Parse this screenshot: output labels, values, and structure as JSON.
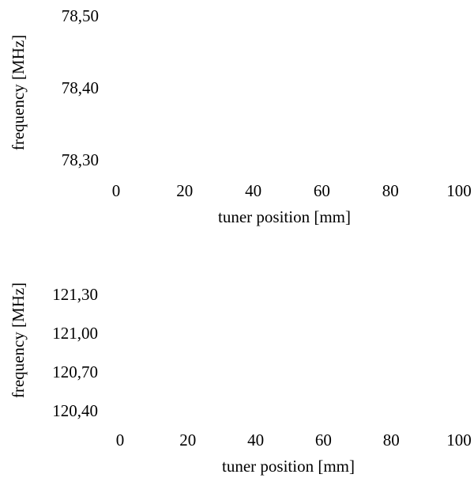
{
  "chart_data": [
    {
      "type": "line",
      "xlabel": "tuner position [mm]",
      "ylabel": "frequency [MHz]",
      "xlim": [
        0,
        100
      ],
      "ylim": [
        78.3,
        78.5
      ],
      "x_ticks": [
        {
          "value": 0,
          "label": "0"
        },
        {
          "value": 20,
          "label": "20"
        },
        {
          "value": 40,
          "label": "40"
        },
        {
          "value": 60,
          "label": "60"
        },
        {
          "value": 80,
          "label": "80"
        },
        {
          "value": 100,
          "label": "100"
        }
      ],
      "y_ticks": [
        {
          "value": 78.3,
          "label": "78,30"
        },
        {
          "value": 78.4,
          "label": "78,40"
        },
        {
          "value": 78.5,
          "label": "78,50"
        }
      ],
      "series": [],
      "grid": false,
      "legend": "none"
    },
    {
      "type": "line",
      "xlabel": "tuner position [mm]",
      "ylabel": "frequency [MHz]",
      "xlim": [
        0,
        100
      ],
      "ylim": [
        120.4,
        121.3
      ],
      "x_ticks": [
        {
          "value": 0,
          "label": "0"
        },
        {
          "value": 20,
          "label": "20"
        },
        {
          "value": 40,
          "label": "40"
        },
        {
          "value": 60,
          "label": "60"
        },
        {
          "value": 80,
          "label": "80"
        },
        {
          "value": 100,
          "label": "100"
        }
      ],
      "y_ticks": [
        {
          "value": 120.4,
          "label": "120,40"
        },
        {
          "value": 120.7,
          "label": "120,70"
        },
        {
          "value": 121.0,
          "label": "121,00"
        },
        {
          "value": 121.3,
          "label": "121,30"
        }
      ],
      "series": [],
      "grid": false,
      "legend": "none"
    }
  ]
}
